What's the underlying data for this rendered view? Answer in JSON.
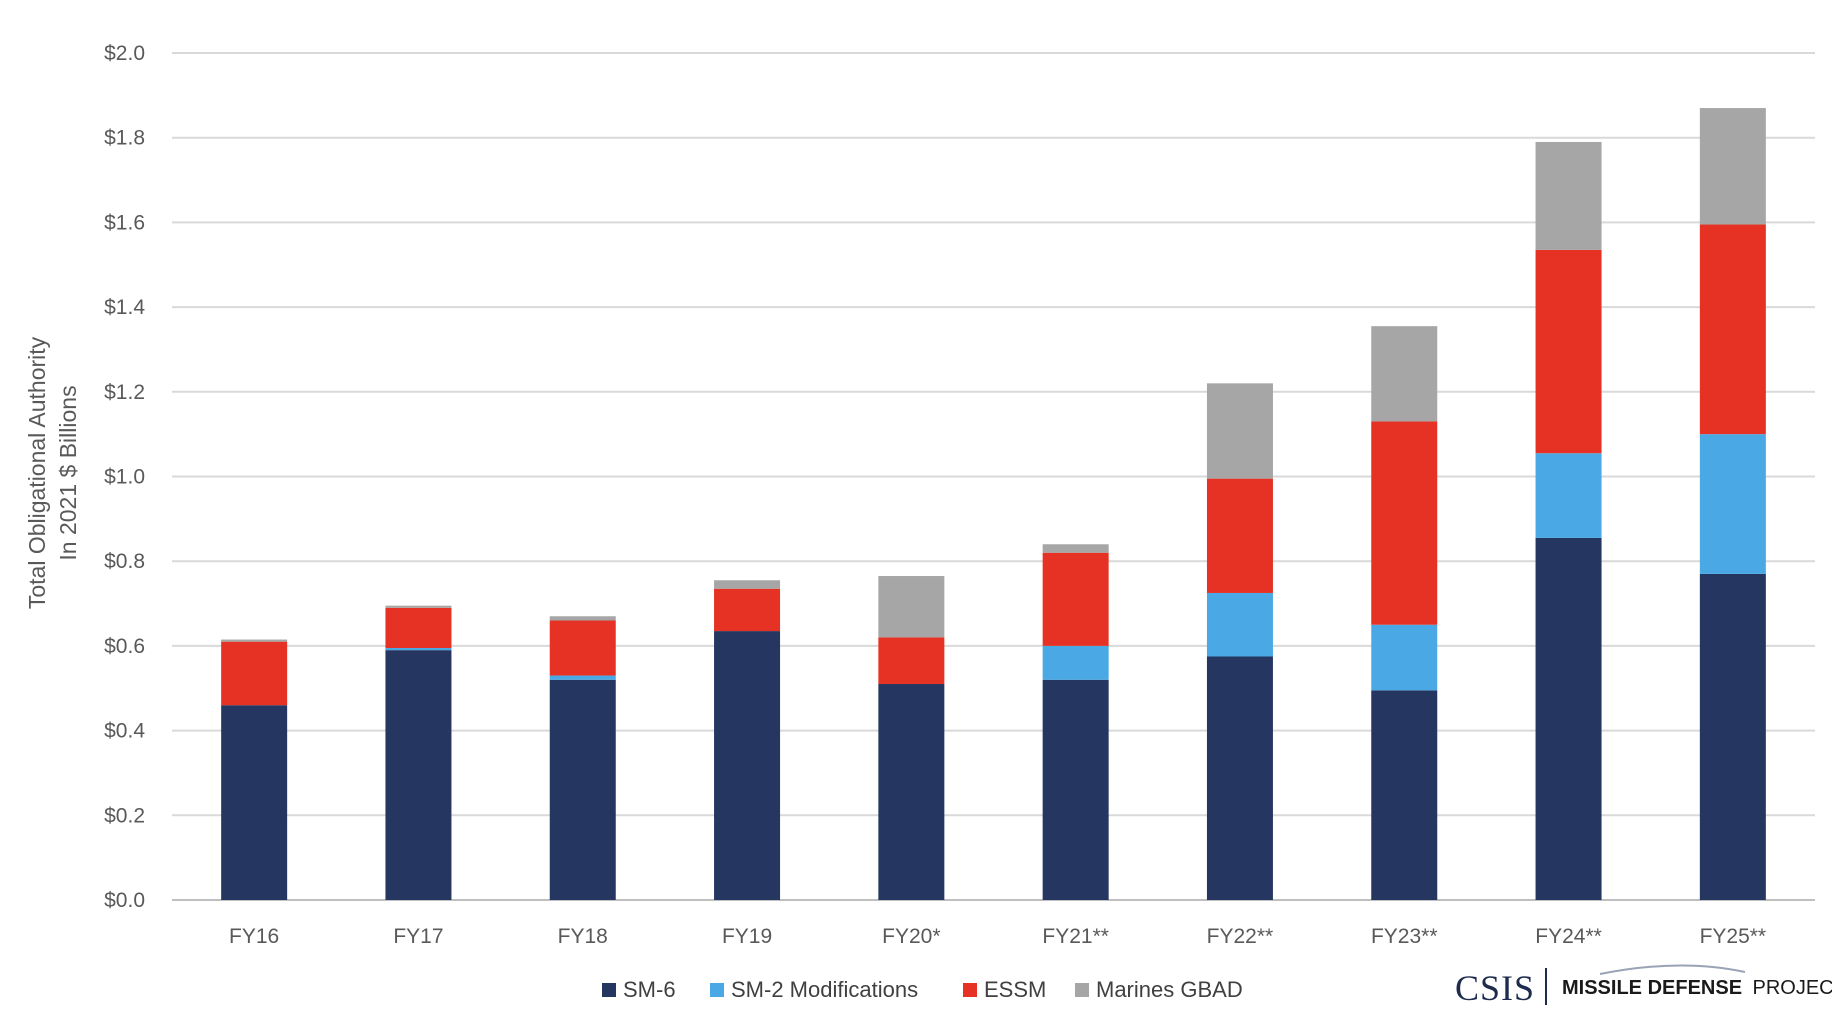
{
  "chart_data": {
    "type": "bar",
    "stacked": true,
    "categories": [
      "FY16",
      "FY17",
      "FY18",
      "FY19",
      "FY20*",
      "FY21**",
      "FY22**",
      "FY23**",
      "FY24**",
      "FY25**"
    ],
    "series": [
      {
        "name": "SM-6",
        "color": "#253760",
        "values": [
          0.46,
          0.59,
          0.52,
          0.635,
          0.51,
          0.52,
          0.575,
          0.495,
          0.855,
          0.77
        ]
      },
      {
        "name": "SM-2 Modifications",
        "color": "#4aa9e4",
        "values": [
          0.0,
          0.005,
          0.01,
          0.0,
          0.0,
          0.08,
          0.15,
          0.155,
          0.2,
          0.33
        ]
      },
      {
        "name": "ESSM",
        "color": "#e53224",
        "values": [
          0.15,
          0.095,
          0.13,
          0.1,
          0.11,
          0.22,
          0.27,
          0.48,
          0.48,
          0.495
        ]
      },
      {
        "name": "Marines GBAD",
        "color": "#a6a6a6",
        "values": [
          0.005,
          0.005,
          0.01,
          0.02,
          0.145,
          0.02,
          0.225,
          0.225,
          0.255,
          0.275
        ]
      }
    ],
    "ylabel_lines": [
      "Total Obligational Authority",
      "In 2021 $ Billions"
    ],
    "xlabel": "",
    "ylim": [
      0,
      2.0
    ],
    "yticks": [
      0,
      0.2,
      0.4,
      0.6,
      0.8,
      1.0,
      1.2,
      1.4,
      1.6,
      1.8,
      2.0
    ],
    "ytick_labels": [
      "$0.0",
      "$0.2",
      "$0.4",
      "$0.6",
      "$0.8",
      "$1.0",
      "$1.2",
      "$1.4",
      "$1.6",
      "$1.8",
      "$2.0"
    ],
    "grid": true,
    "legend_position": "bottom-center"
  },
  "branding": {
    "org": "CSIS",
    "project_bold": "MISSILE DEFENSE",
    "project_rest": "PROJECT"
  }
}
